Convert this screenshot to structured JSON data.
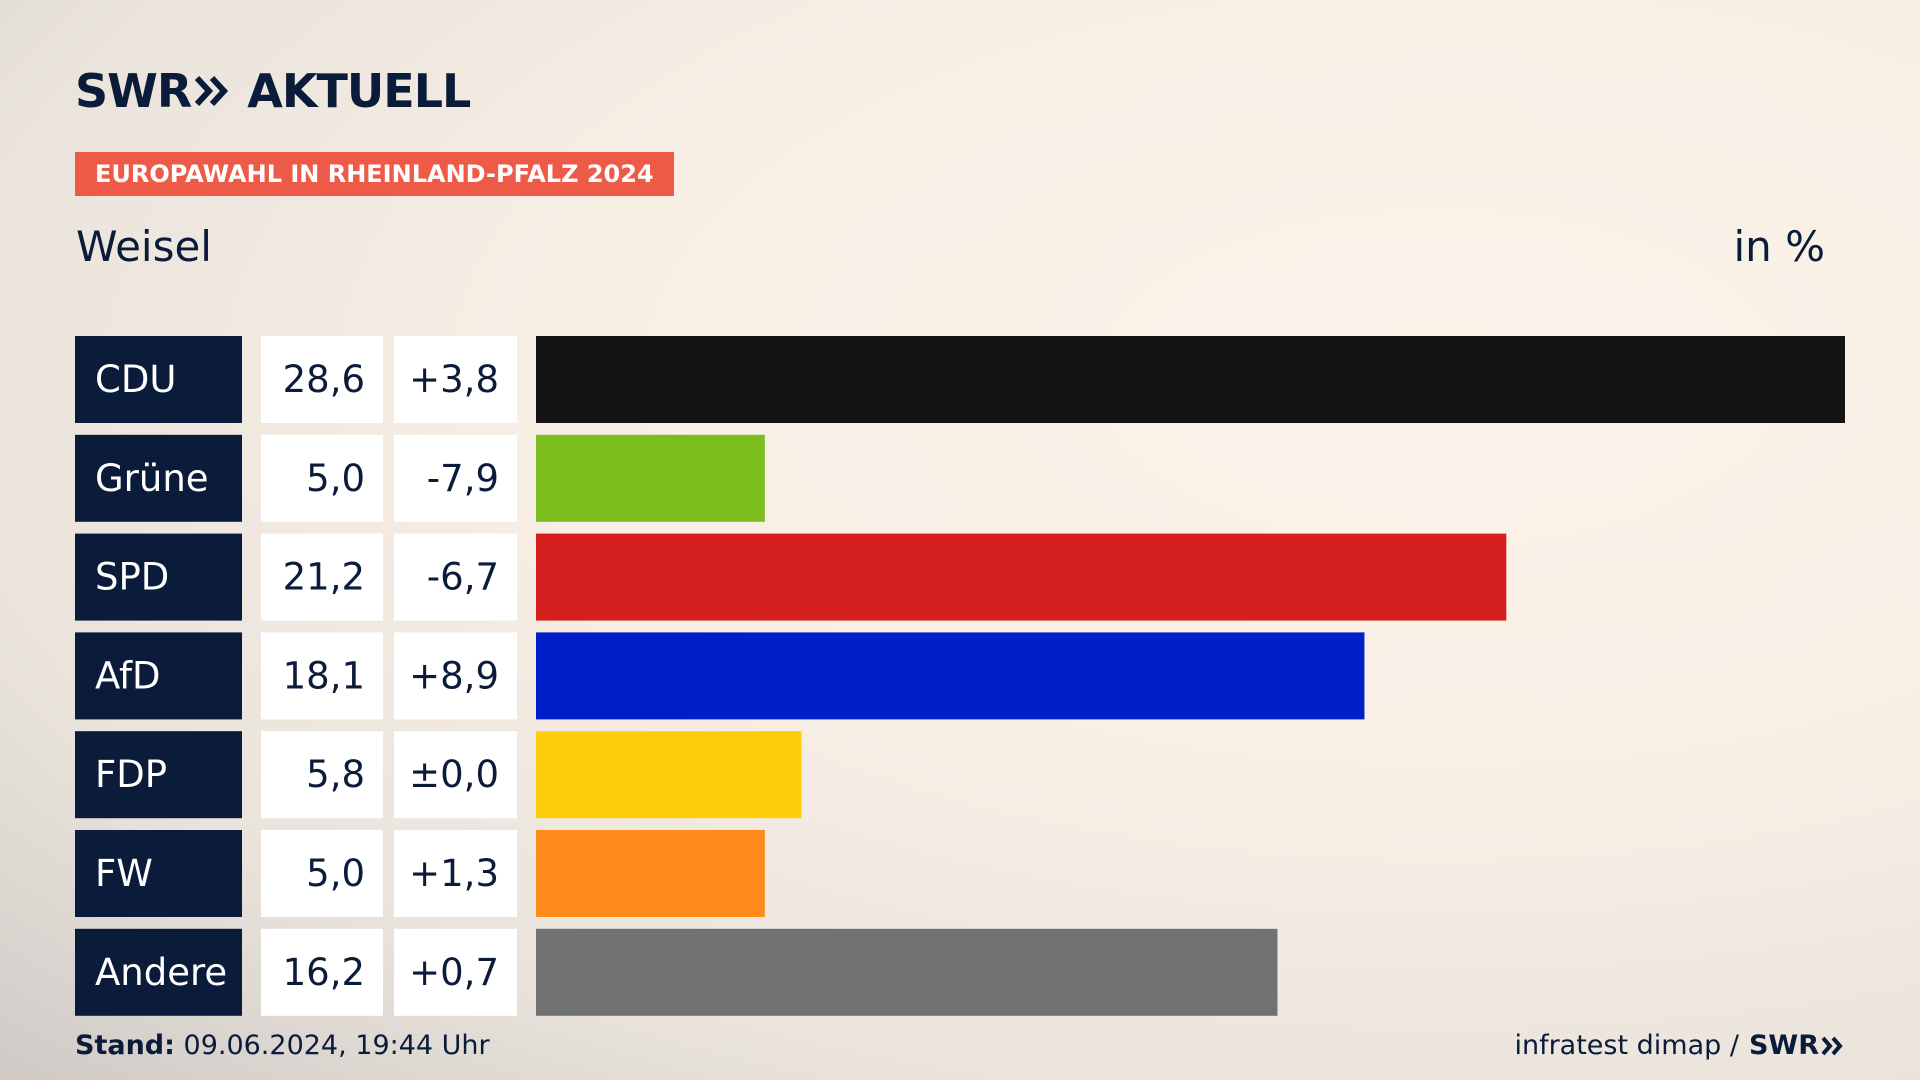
{
  "brand": {
    "logo_left": "SWR",
    "logo_right": "AKTUELL"
  },
  "header": {
    "tag": "EUROPAWAHL IN RHEINLAND-PFALZ 2024",
    "subtitle": "Weisel",
    "unit": "in %"
  },
  "footer": {
    "stand_label": "Stand:",
    "stand_value": "09.06.2024, 19:44 Uhr",
    "source": "infratest dimap /",
    "source_logo": "SWR"
  },
  "colors": {
    "label_bg": "#0b1b3a",
    "value_bg": "#ffffff",
    "accent": "#ee5a48"
  },
  "chart_data": {
    "type": "bar",
    "title": "Europawahl in Rheinland-Pfalz 2024 – Weisel",
    "ylabel": "in %",
    "orientation": "horizontal",
    "categories": [
      "CDU",
      "Grüne",
      "SPD",
      "AfD",
      "FDP",
      "FW",
      "Andere"
    ],
    "values": [
      28.6,
      5.0,
      21.2,
      18.1,
      5.8,
      5.0,
      16.2
    ],
    "value_labels": [
      "28,6",
      "5,0",
      "21,2",
      "18,1",
      "5,8",
      "5,0",
      "16,2"
    ],
    "change_labels": [
      "+3,8",
      "-7,9",
      "-6,7",
      "+8,9",
      "±0,0",
      "+1,3",
      "+0,7"
    ],
    "changes": [
      3.8,
      -7.9,
      -6.7,
      8.9,
      0.0,
      1.3,
      0.7
    ],
    "bar_colors": [
      "#141414",
      "#7cbd1e",
      "#d61f1f",
      "#001fc8",
      "#fdcd0a",
      "#ff8c1a",
      "#707172"
    ],
    "xlim": [
      0,
      28.6
    ]
  }
}
